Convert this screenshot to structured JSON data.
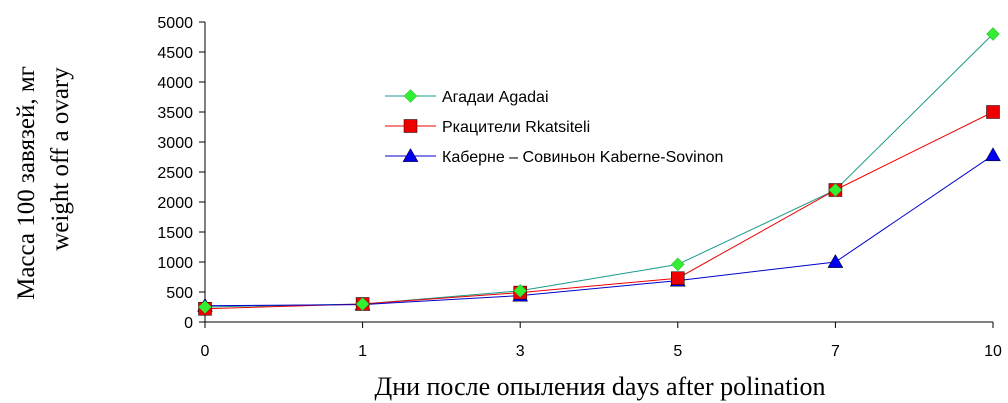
{
  "chart_data": {
    "type": "line",
    "categories": [
      "0",
      "1",
      "3",
      "5",
      "7",
      "10"
    ],
    "xlabel": "Дни после опыления days after polination",
    "ylabel": [
      "Масса 100  завязей, мг",
      "weight off a ovary"
    ],
    "ylim": [
      0,
      5000
    ],
    "yticks": [
      0,
      500,
      1000,
      1500,
      2000,
      2500,
      3000,
      3500,
      4000,
      4500,
      5000
    ],
    "grid": false,
    "legend_position": "center",
    "series": [
      {
        "name": "Агадаи Agadai",
        "color": "#1a9a8a",
        "marker_color": "#33ee33",
        "marker": "diamond",
        "values": [
          250,
          300,
          520,
          960,
          2200,
          4800
        ]
      },
      {
        "name": "Ркацители Rkatsiteli",
        "color": "#ee0000",
        "marker_color": "#ee0000",
        "marker": "square",
        "values": [
          220,
          300,
          490,
          730,
          2200,
          3500
        ]
      },
      {
        "name": "Каберне – Совиньон Kaberne-Sovinon",
        "color": "#0000cc",
        "marker_color": "#0000ee",
        "marker": "triangle",
        "values": [
          270,
          290,
          440,
          690,
          1000,
          2780
        ]
      }
    ]
  }
}
